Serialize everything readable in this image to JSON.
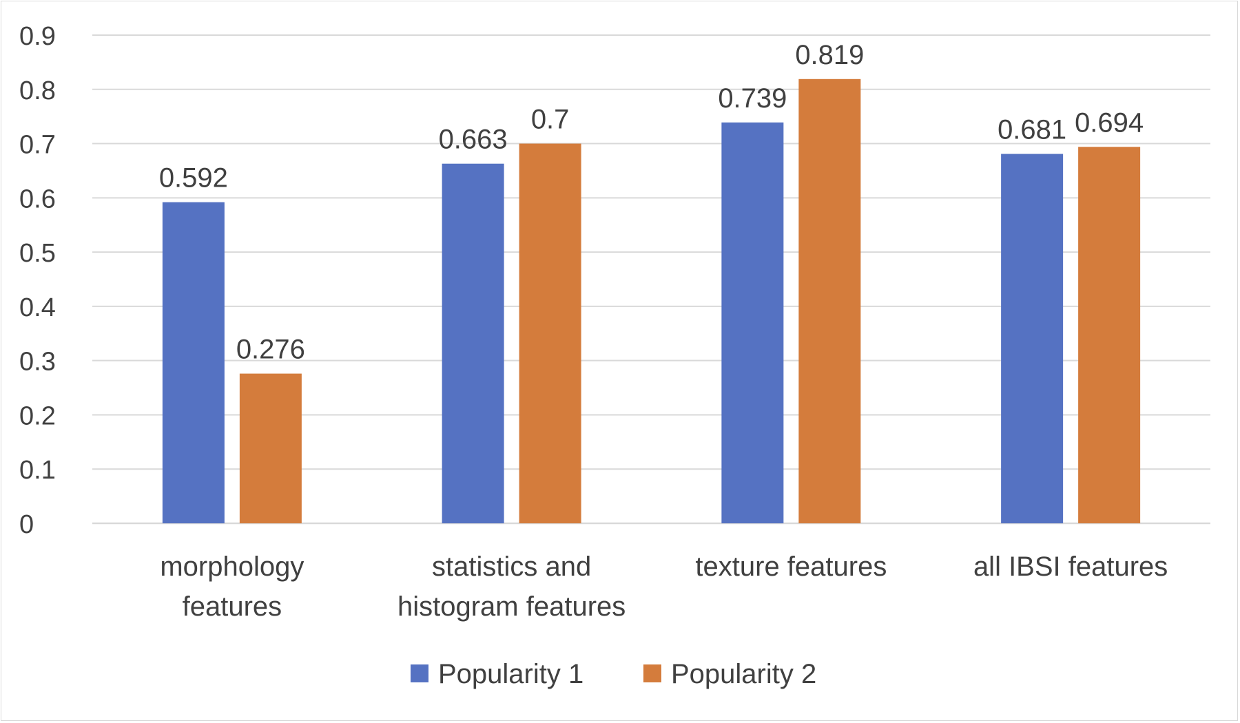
{
  "chart_data": {
    "type": "bar",
    "title": "",
    "xlabel": "",
    "ylabel": "",
    "ylim": [
      0,
      0.9
    ],
    "yticks": [
      "0",
      "0.1",
      "0.2",
      "0.3",
      "0.4",
      "0.5",
      "0.6",
      "0.7",
      "0.8",
      "0.9"
    ],
    "categories": [
      [
        "morphology",
        "features"
      ],
      [
        "statistics and",
        "histogram features"
      ],
      [
        "texture features"
      ],
      [
        "all IBSI features"
      ]
    ],
    "series": [
      {
        "name": "Popularity 1",
        "color": "#5572c2",
        "values": [
          0.592,
          0.663,
          0.739,
          0.681
        ],
        "labels": [
          "0.592",
          "0.663",
          "0.739",
          "0.681"
        ]
      },
      {
        "name": "Popularity 2",
        "color": "#d47c3c",
        "values": [
          0.276,
          0.7,
          0.819,
          0.694
        ],
        "labels": [
          "0.276",
          "0.7",
          "0.819",
          "0.694"
        ]
      }
    ],
    "grid": true,
    "legend": "bottom-center"
  }
}
